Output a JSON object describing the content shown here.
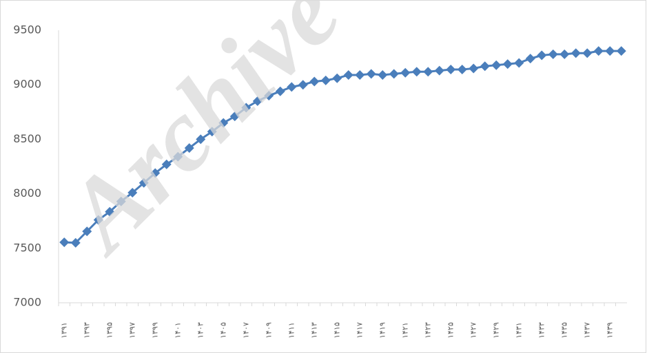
{
  "chart_data": {
    "type": "line",
    "watermark": "Archive",
    "categories": [
      "۱۳۹۱",
      null,
      "۱۳۹۳",
      null,
      "۱۳۹۵",
      null,
      "۱۳۹۷",
      null,
      "۱۳۹۹",
      null,
      "۱۴۰۱",
      null,
      "۱۴۰۳",
      null,
      "۱۴۰۵",
      null,
      "۱۴۰۷",
      null,
      "۱۴۰۹",
      null,
      "۱۴۱۱",
      null,
      "۱۴۱۳",
      null,
      "۱۴۱۵",
      null,
      "۱۴۱۷",
      null,
      "۱۴۱۹",
      null,
      "۱۴۲۱",
      null,
      "۱۴۲۳",
      null,
      "۱۴۲۵",
      null,
      "۱۴۲۷",
      null,
      "۱۴۲۹",
      null,
      "۱۴۳۱",
      null,
      "۱۴۳۳",
      null,
      "۱۴۳۵",
      null,
      "۱۴۳۷",
      null,
      "۱۴۳۹",
      null
    ],
    "values": [
      7555,
      7550,
      7655,
      7760,
      7835,
      7930,
      8010,
      8100,
      8190,
      8270,
      8340,
      8420,
      8500,
      8570,
      8650,
      8710,
      8790,
      8850,
      8900,
      8940,
      8980,
      9000,
      9030,
      9040,
      9060,
      9090,
      9090,
      9100,
      9090,
      9100,
      9110,
      9120,
      9120,
      9130,
      9140,
      9140,
      9150,
      9170,
      9180,
      9190,
      9200,
      9240,
      9270,
      9280,
      9280,
      9290,
      9290,
      9310,
      9310,
      9310
    ],
    "color": "#4a7ebb",
    "ylim": [
      7000,
      9500
    ],
    "yticks": [
      7000,
      7500,
      8000,
      8500,
      9000,
      9500
    ],
    "grid": false
  }
}
